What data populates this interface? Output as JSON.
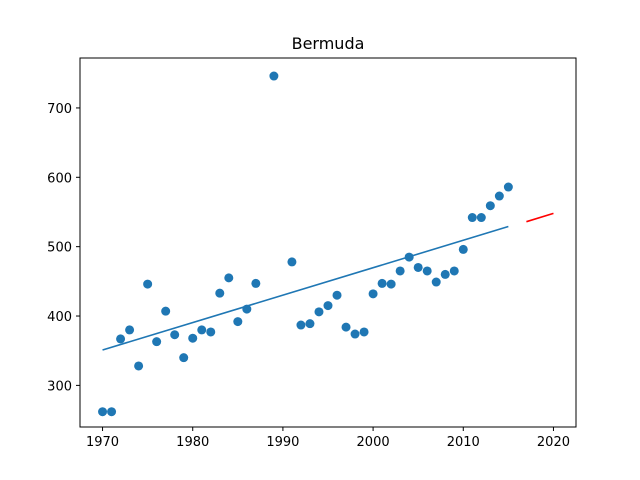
{
  "chart_data": {
    "type": "scatter",
    "title": "Bermuda",
    "xlabel": "",
    "ylabel": "",
    "xlim": [
      1967.5,
      2022.5
    ],
    "ylim": [
      240,
      772
    ],
    "x_ticks": [
      1970,
      1980,
      1990,
      2000,
      2010,
      2020
    ],
    "y_ticks": [
      300,
      400,
      500,
      600,
      700
    ],
    "grid": false,
    "colors": {
      "points": "#1f77b4",
      "fit": "#1f77b4",
      "projection": "#ff0000"
    },
    "series": [
      {
        "kind": "scatter",
        "x": [
          1970,
          1971,
          1972,
          1973,
          1974,
          1975,
          1976,
          1977,
          1978,
          1979,
          1980,
          1981,
          1982,
          1983,
          1984,
          1985,
          1986,
          1987,
          1989,
          1991,
          1992,
          1993,
          1994,
          1995,
          1996,
          1997,
          1998,
          1999,
          2000,
          2001,
          2002,
          2003,
          2004,
          2005,
          2006,
          2007,
          2008,
          2009,
          2010,
          2011,
          2012,
          2013,
          2014,
          2015
        ],
        "y": [
          262,
          262,
          367,
          380,
          328,
          446,
          363,
          407,
          373,
          340,
          368,
          380,
          377,
          433,
          455,
          392,
          410,
          447,
          746,
          478,
          387,
          389,
          406,
          415,
          430,
          384,
          374,
          377,
          432,
          447,
          446,
          465,
          485,
          470,
          465,
          449,
          460,
          465,
          496,
          542,
          542,
          559,
          573,
          586
        ]
      },
      {
        "kind": "line",
        "x": [
          1970,
          2015
        ],
        "y": [
          351,
          529
        ]
      },
      {
        "kind": "line",
        "x": [
          2017,
          2020
        ],
        "y": [
          536,
          548
        ]
      }
    ]
  }
}
